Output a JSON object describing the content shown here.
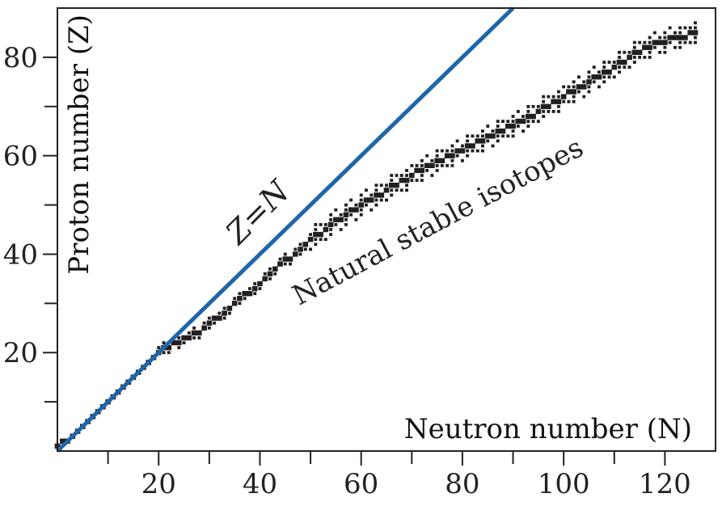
{
  "chart_data": {
    "type": "scatter",
    "title": "",
    "xlabel": "Neutron number (N)",
    "ylabel": "Proton number (Z)",
    "xlim": [
      0,
      130
    ],
    "ylim": [
      0,
      90
    ],
    "x_ticks": [
      20,
      40,
      60,
      80,
      100,
      120
    ],
    "y_ticks": [
      20,
      40,
      60,
      80
    ],
    "x_minor_ticks": [
      10,
      30,
      50,
      70,
      90,
      110
    ],
    "y_minor_ticks": [
      10,
      30,
      50,
      70
    ],
    "grid": false,
    "legend": "none",
    "series": [
      {
        "type": "line",
        "color": "#1f66a8",
        "label": "Z=N",
        "points": [
          [
            0,
            0
          ],
          [
            90,
            90
          ]
        ]
      },
      {
        "type": "scatter",
        "color": "#231f20",
        "label": "Natural stable isotopes",
        "marker": "square",
        "stable_band_nodes": [
          [
            0,
            1
          ],
          [
            2,
            2
          ],
          [
            6,
            6
          ],
          [
            10,
            10
          ],
          [
            16,
            16
          ],
          [
            20,
            20
          ],
          [
            28,
            24
          ],
          [
            40,
            34
          ],
          [
            50,
            43
          ],
          [
            60,
            50
          ],
          [
            70,
            56
          ],
          [
            82,
            62
          ],
          [
            90,
            66
          ],
          [
            100,
            72
          ],
          [
            110,
            78
          ],
          [
            116,
            82
          ],
          [
            126,
            85
          ]
        ]
      }
    ],
    "annotations": [
      {
        "text": "Z=N",
        "x": 41,
        "y": 47,
        "rotation_deg": -45
      },
      {
        "text": "Natural stable isotopes",
        "x": 76,
        "y": 45,
        "rotation_deg": -28
      }
    ]
  }
}
